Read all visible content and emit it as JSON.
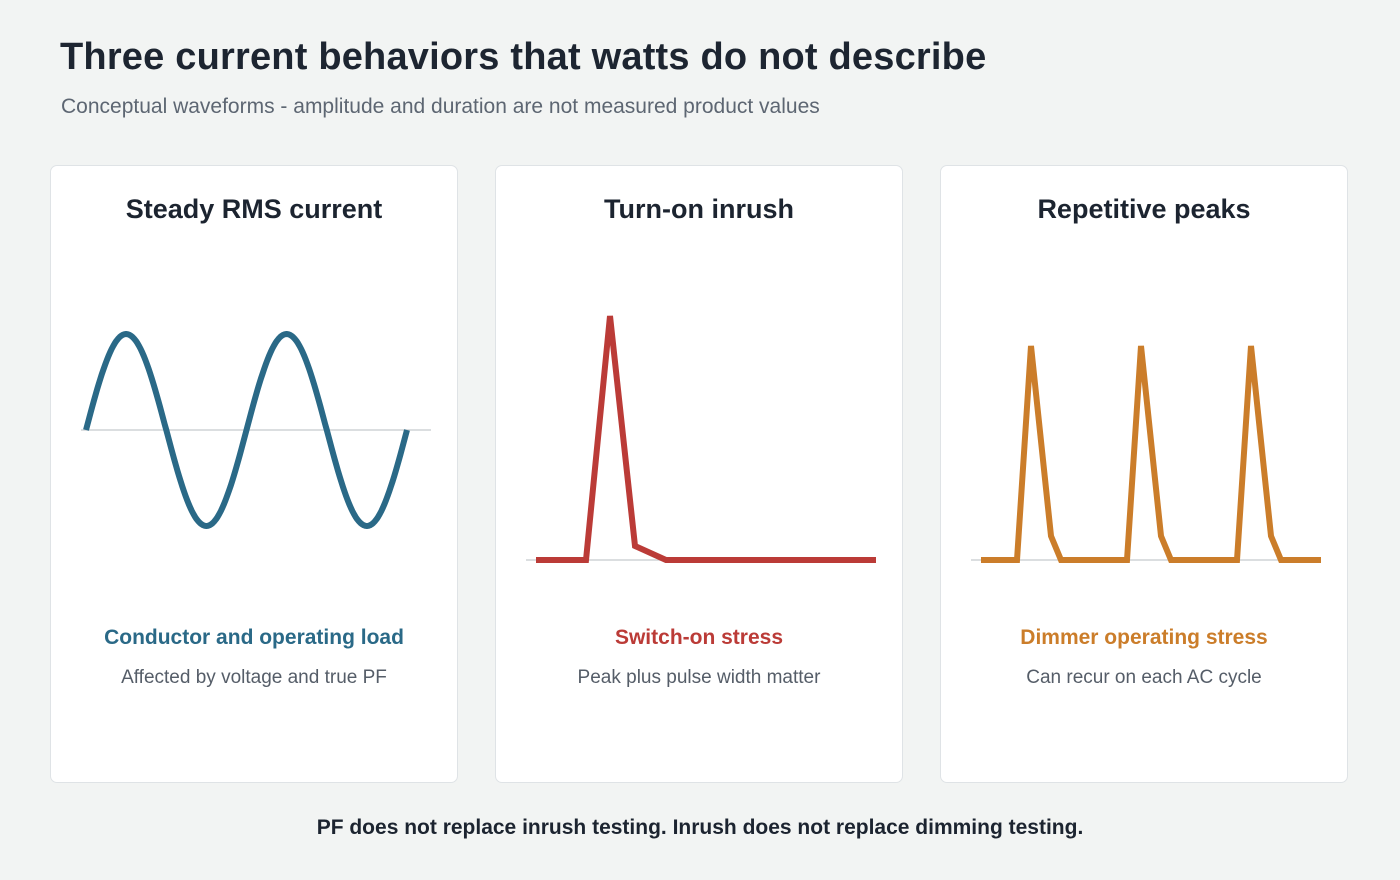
{
  "title": "Three current behaviors that watts do not describe",
  "subtitle": "Conceptual waveforms - amplitude and duration are not measured product values",
  "cards": [
    {
      "title": "Steady RMS current",
      "caption": "Conductor and operating load",
      "note": "Affected by voltage and true PF",
      "color": "#2a6987",
      "waveform": "sine"
    },
    {
      "title": "Turn-on inrush",
      "caption": "Switch-on stress",
      "note": "Peak plus pulse width matter",
      "color": "#bb3b37",
      "waveform": "single-spike"
    },
    {
      "title": "Repetitive peaks",
      "caption": "Dimmer operating stress",
      "note": "Can recur on each AC cycle",
      "color": "#cb7d2a",
      "waveform": "repeating-spikes"
    }
  ],
  "footer": "PF does not replace inrush testing. Inrush does not replace dimming testing."
}
